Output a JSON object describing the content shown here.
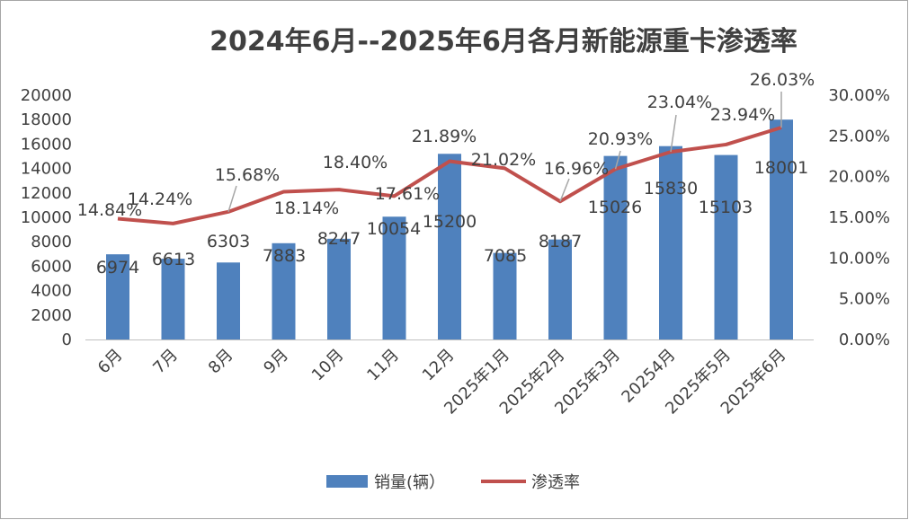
{
  "chart_data": {
    "type": "bar+line",
    "title": "2024年6月--2025年6月各月新能源重卡渗透率",
    "categories": [
      "6月",
      "7月",
      "8月",
      "9月",
      "10月",
      "11月",
      "12月",
      "2025年1月",
      "2025年2月",
      "2025年3月",
      "20254月",
      "2025年5月",
      "2025年6月"
    ],
    "series": [
      {
        "name": "销量(辆）",
        "type": "bar",
        "axis": "left",
        "color": "#4f81bd",
        "values": [
          6974,
          6613,
          6303,
          7883,
          8247,
          10054,
          15200,
          7085,
          8187,
          15026,
          15830,
          15103,
          18001
        ],
        "labels": [
          "6974",
          "6613",
          "6303",
          "7883",
          "8247",
          "10054",
          "15200",
          "7085",
          "8187",
          "15026",
          "15830",
          "15103",
          "18001"
        ]
      },
      {
        "name": "渗透率",
        "type": "line",
        "axis": "right",
        "color": "#c0504d",
        "values": [
          14.84,
          14.24,
          15.68,
          18.14,
          18.4,
          17.61,
          21.89,
          21.02,
          16.96,
          20.93,
          23.04,
          23.94,
          26.03
        ],
        "labels": [
          "14.84%",
          "14.24%",
          "15.68%",
          "18.14%",
          "18.40%",
          "17.61%",
          "21.89%",
          "21.02%",
          "16.96%",
          "20.93%",
          "23.04%",
          "23.94%",
          "26.03%"
        ]
      }
    ],
    "y_left": {
      "min": 0,
      "max": 20000,
      "ticks": [
        "0",
        "2000",
        "4000",
        "6000",
        "8000",
        "10000",
        "12000",
        "14000",
        "16000",
        "18000",
        "20000"
      ]
    },
    "y_right": {
      "min": 0,
      "max": 30,
      "ticks": [
        "0.00%",
        "5.00%",
        "10.00%",
        "15.00%",
        "20.00%",
        "25.00%",
        "30.00%"
      ]
    },
    "grid": false,
    "legend": "bottom"
  }
}
